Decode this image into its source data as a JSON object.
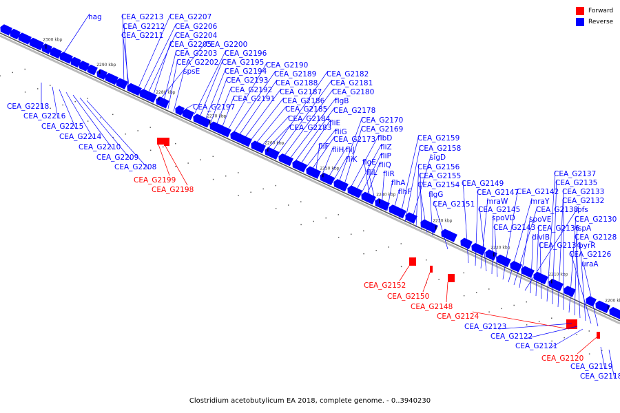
{
  "caption": "Clostridium acetobutylicum EA 2018, complete genome. - 0..3940230",
  "legend": [
    {
      "label": "Forward",
      "color": "#ff0000"
    },
    {
      "label": "Reverse",
      "color": "#0000ff"
    }
  ],
  "colors": {
    "forward": "#ff0000",
    "reverse": "#0000ff",
    "backbone": "#555555"
  },
  "ticks": [
    "2300 kbp",
    "2290 kbp",
    "2280 kbp",
    "2270 kbp",
    "2260 kbp",
    "2250 kbp",
    "2240 kbp",
    "2230 kbp",
    "2220 kbp",
    "2210 kbp",
    "2200 kbp"
  ],
  "reverse_labels": [
    "hag",
    "CEA_G2213",
    "CEA_G2212",
    "CEA_G2211",
    "CEA_G2207",
    "CEA_G2206",
    "CEA_G2204",
    "CEA_G2205",
    "CEA_G2200",
    "CEA_G2203",
    "CEA_G2202",
    "spsE",
    "CEA_G2196",
    "CEA_G2195",
    "CEA_G2194",
    "CEA_G2193",
    "CEA_G2192",
    "CEA_G2191",
    "CEA_G2197",
    "CEA_G2190",
    "CEA_G2189",
    "CEA_G2188",
    "CEA_G2187",
    "CEA_G2186",
    "CEA_G2185",
    "CEA_G2184",
    "CEA_G2183",
    "CEA_G2182",
    "CEA_G2181",
    "CEA_G2180",
    "flgB",
    "CEA_G2178",
    "fliE",
    "fliG",
    "CEA_G2173",
    "fliF",
    "fliH",
    "fliJ",
    "fliK",
    "CEA_G2170",
    "CEA_G2169",
    "flbD",
    "fliZ",
    "fliP",
    "fliQ",
    "flgE",
    "fliL",
    "fliR",
    "flhA",
    "flhF",
    "CEA_G2159",
    "CEA_G2158",
    "sigD",
    "CEA_G2156",
    "CEA_G2155",
    "CEA_G2154",
    "flgG",
    "CEA_G2151",
    "CEA_G2149",
    "CEA_G2147",
    "mraW",
    "CEA_G2145",
    "spoVD",
    "CEA_G2143",
    "CEA_G2142",
    "mraY",
    "CEA_G2138",
    "spoVE",
    "pfs",
    "divIB",
    "CEA_G2136",
    "CEA_G2134",
    "CEA_G2137",
    "CEA_G2135",
    "CEA_G2133",
    "CEA_G2132",
    "CEA_G2130",
    "ispA",
    "CEA_G2128",
    "pyrR",
    "CEA_G2126",
    "uraA",
    "CEA_G2218",
    "CEA_G2216",
    "CEA_G2215",
    "CEA_G2214",
    "CEA_G2210",
    "CEA_G2209",
    "CEA_G2208",
    "CEA_G2123",
    "CEA_G2122",
    "CEA_G2121",
    "CEA_G2119",
    "CEA_G2118"
  ],
  "forward_labels": [
    "CEA_G2199",
    "CEA_G2198",
    "CEA_G2152",
    "CEA_G2150",
    "CEA_G2148",
    "CEA_G2124",
    "CEA_G2120"
  ]
}
